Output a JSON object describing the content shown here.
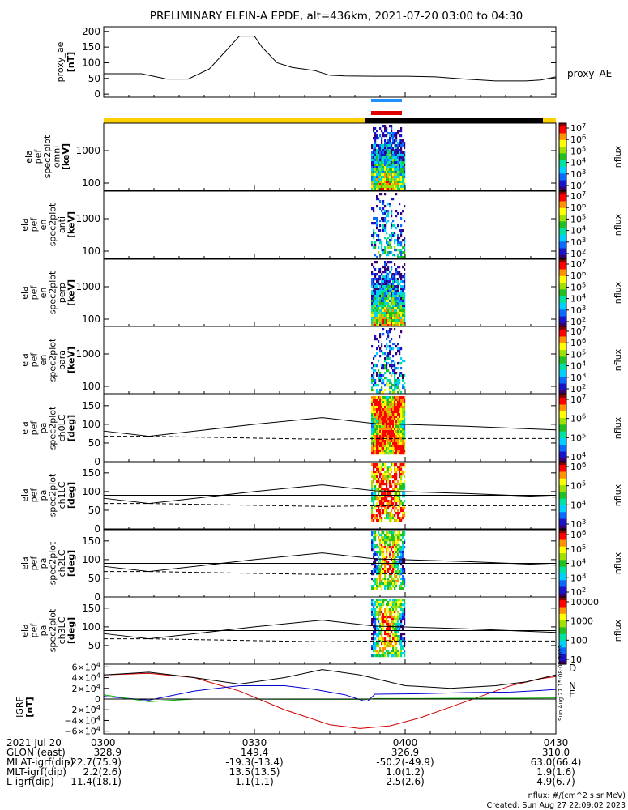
{
  "title": "PRELIMINARY ELFIN-A EPDE, alt=436km, 2021-07-20 03:00 to 04:30",
  "colors": {
    "cbar": [
      "#ffffff",
      "#3a006a",
      "#1a14c8",
      "#0a6aff",
      "#00d0ff",
      "#00e0a0",
      "#20c020",
      "#a0e000",
      "#ffff00",
      "#ff9000",
      "#ff0000",
      "#8a0000"
    ]
  },
  "chart_data": [
    {
      "type": "line",
      "ylabel": "proxy_ae\n[nT]",
      "legend": "proxy_AE",
      "ylim": [
        -10,
        215
      ],
      "yticks": [
        "0",
        "50",
        "100",
        "150",
        "200"
      ],
      "ytick_values": [
        0,
        50,
        100,
        150,
        200
      ],
      "x": [
        0,
        0.25,
        0.42,
        0.56,
        0.7,
        0.9,
        1.0,
        1.05,
        1.15,
        1.25,
        1.4,
        1.5
      ],
      "values": [
        65,
        65,
        48,
        48,
        80,
        185,
        185,
        150,
        100,
        85,
        75,
        60
      ],
      "x2": [
        1.5,
        1.6,
        1.8,
        2.0,
        2.2,
        2.4,
        2.6,
        2.8,
        2.9,
        3.0
      ],
      "values2": [
        60,
        58,
        57,
        57,
        55,
        48,
        42,
        42,
        45,
        55
      ]
    },
    {
      "type": "heatmap",
      "series": [
        {
          "ylabel": [
            "ela",
            "pef",
            "spec2plot",
            "omni",
            "[keV]"
          ],
          "yticks": [
            "100",
            "1000"
          ],
          "cbar_ticks": [
            "10^7",
            "10^6",
            "10^5",
            "10^4",
            "10^3",
            "10^2"
          ],
          "cbar_label": "nflux"
        },
        {
          "ylabel": [
            "ela",
            "pef",
            "en",
            "spec2plot",
            "anti",
            "[keV]"
          ],
          "yticks": [
            "100",
            "1000"
          ],
          "cbar_ticks": [
            "10^7",
            "10^6",
            "10^5",
            "10^4",
            "10^3",
            "10^2"
          ],
          "cbar_label": "nflux"
        },
        {
          "ylabel": [
            "ela",
            "pef",
            "en",
            "spec2plot",
            "perp",
            "[keV]"
          ],
          "yticks": [
            "100",
            "1000"
          ],
          "cbar_ticks": [
            "10^7",
            "10^6",
            "10^5",
            "10^4",
            "10^3",
            "10^2"
          ],
          "cbar_label": "nflux"
        },
        {
          "ylabel": [
            "ela",
            "pef",
            "en",
            "spec2plot",
            "para",
            "[keV]"
          ],
          "yticks": [
            "100",
            "1000"
          ],
          "cbar_ticks": [
            "10^7",
            "10^6",
            "10^5",
            "10^4",
            "10^3",
            "10^2"
          ],
          "cbar_label": "nflux"
        },
        {
          "ylabel": [
            "ela",
            "pef",
            "pa",
            "spec2plot",
            "ch0LC",
            "[deg]"
          ],
          "yticks": [
            "0",
            "50",
            "100",
            "150"
          ],
          "cbar_ticks": [
            "10^7",
            "10^6",
            "10^5",
            "10^4"
          ],
          "cbar_label": "nflux"
        },
        {
          "ylabel": [
            "ela",
            "pef",
            "pa",
            "spec2plot",
            "ch1LC",
            "[deg]"
          ],
          "yticks": [
            "0",
            "50",
            "100",
            "150"
          ],
          "cbar_ticks": [
            "10^6",
            "10^5",
            "10^4",
            "10^3"
          ],
          "cbar_label": "nflux"
        },
        {
          "ylabel": [
            "ela",
            "pef",
            "pa",
            "spec2plot",
            "ch2LC",
            "[deg]"
          ],
          "yticks": [
            "0",
            "50",
            "100",
            "150"
          ],
          "cbar_ticks": [
            "10^6",
            "10^5",
            "10^4",
            "10^3",
            "10^2"
          ],
          "cbar_label": "nflux"
        },
        {
          "ylabel": [
            "ela",
            "pef",
            "pa",
            "spec2plot",
            "ch3LC",
            "[deg]"
          ],
          "yticks": [
            "50",
            "100",
            "150"
          ],
          "cbar_ticks": [
            "10000",
            "1000",
            "100",
            "10"
          ],
          "cbar_label": "nflux"
        }
      ]
    },
    {
      "type": "line",
      "ylabel": "IGRF\n[nT]",
      "ylim": [
        -65000,
        65000
      ],
      "yticks": [
        "6×10^4",
        "4×10^4",
        "2×10^4",
        "0",
        "−2×10^4",
        "−4×10^4",
        "−6×10^4"
      ],
      "ytick_values": [
        60000,
        40000,
        20000,
        0,
        -20000,
        -40000,
        -60000
      ],
      "series": [
        {
          "name": "D",
          "color": "#d00000",
          "x": [
            0,
            0.3,
            0.6,
            0.9,
            1.2,
            1.5,
            1.7,
            1.9,
            2.1,
            2.3,
            2.5,
            2.7,
            2.9,
            3.0
          ],
          "values": [
            45000,
            48000,
            40000,
            15000,
            -20000,
            -48000,
            -55000,
            -50000,
            -35000,
            -15000,
            5000,
            25000,
            38000,
            42000
          ]
        },
        {
          "name": "N",
          "color": "#0000d0",
          "x": [
            0,
            0.3,
            0.6,
            0.9,
            1.2,
            1.4,
            1.6,
            1.72,
            1.75,
            1.8,
            2.1,
            2.4,
            2.7,
            2.9,
            3.0
          ],
          "values": [
            5000,
            -2000,
            15000,
            25000,
            25000,
            18000,
            8000,
            -3000,
            -4000,
            9000,
            10000,
            12000,
            13000,
            16000,
            18000
          ]
        },
        {
          "name": "E",
          "color": "#00b000",
          "x": [
            0,
            0.3,
            0.6,
            0.9,
            1.2,
            1.5,
            1.75,
            1.8,
            2.1,
            2.4,
            2.7,
            3.0
          ],
          "values": [
            8000,
            -5000,
            0,
            0,
            -500,
            -500,
            -500,
            1000,
            1000,
            1500,
            1500,
            2000
          ]
        },
        {
          "name": "",
          "color": "#000000",
          "x": [
            0,
            0.3,
            0.6,
            0.9,
            1.2,
            1.45,
            1.7,
            2.0,
            2.3,
            2.6,
            2.8,
            3.0
          ],
          "values": [
            45000,
            50000,
            40000,
            28000,
            40000,
            55000,
            45000,
            25000,
            20000,
            25000,
            32000,
            45000
          ]
        }
      ]
    }
  ],
  "ephemeris": {
    "rows": [
      {
        "label": "2021 Jul 20",
        "values": [
          "0300",
          "0330",
          "0400",
          "0430"
        ]
      },
      {
        "label": "GLON (east)",
        "values": [
          "328.9",
          "149.4",
          "326.9",
          "310.0"
        ]
      },
      {
        "label": "MLAT-igrf(dip)",
        "values": [
          "-22.7(75.9)",
          "-19.3(-13.4)",
          "-50.2(-49.9)",
          "63.0(66.4)"
        ]
      },
      {
        "label": "MLT-igrf(dip)",
        "values": [
          "2.2(2.6)",
          "13.5(13.5)",
          "1.0(1.2)",
          "1.9(1.6)"
        ]
      },
      {
        "label": "L-igrf(dip)",
        "values": [
          "11.4(18.1)",
          "1.1(1.1)",
          "2.5(2.6)",
          "4.9(6.7)"
        ]
      }
    ]
  },
  "footer": {
    "units": "nflux: #/(cm^2 s sr MeV)",
    "created": "Created: Sun Aug 27 22:09:02 2023"
  },
  "side_stamp": "Sun Aug 27 15:08:02 2023"
}
